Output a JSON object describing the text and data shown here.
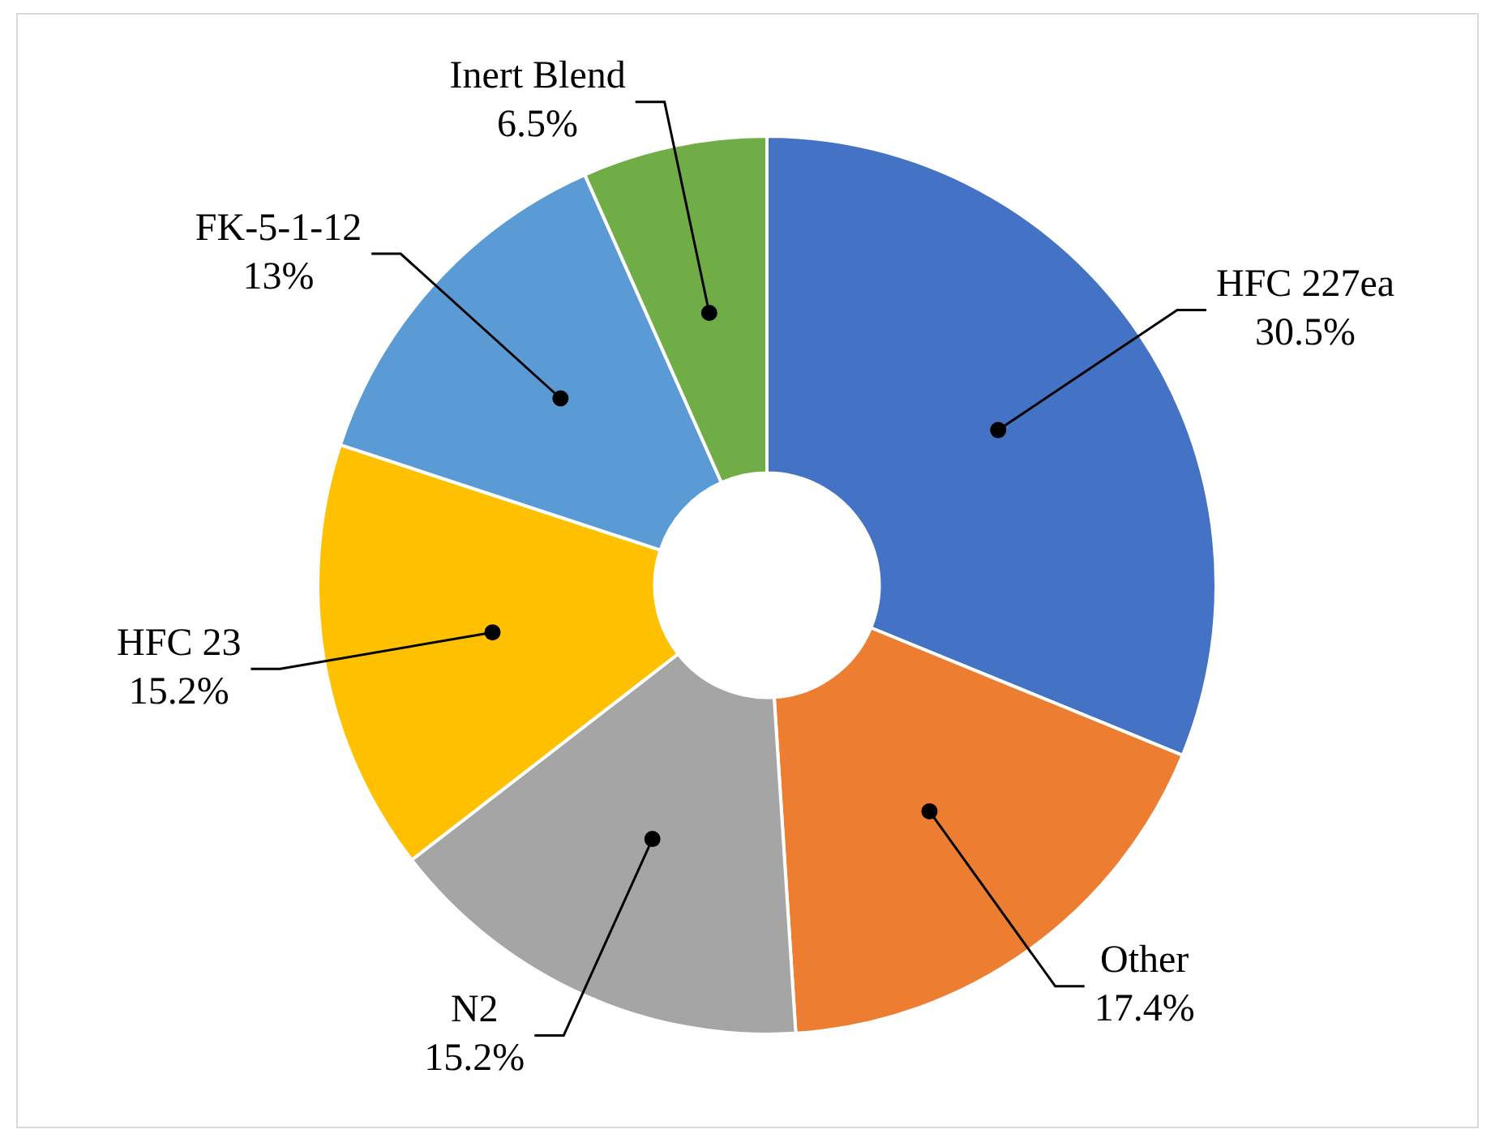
{
  "chart_data": {
    "type": "donut",
    "categories": [
      "HFC 227ea",
      "Other",
      "N2",
      "HFC 23",
      "FK-5-1-12",
      "Inert Blend"
    ],
    "values": [
      30.5,
      17.4,
      15.2,
      15.2,
      13,
      6.5
    ],
    "value_labels": [
      "30.5%",
      "17.4%",
      "15.2%",
      "15.2%",
      "13%",
      "6.5%"
    ],
    "colors": [
      "#4472c4",
      "#ed7d31",
      "#a5a5a5",
      "#ffc000",
      "#5b9bd5",
      "#70ad47"
    ],
    "legend": false
  }
}
